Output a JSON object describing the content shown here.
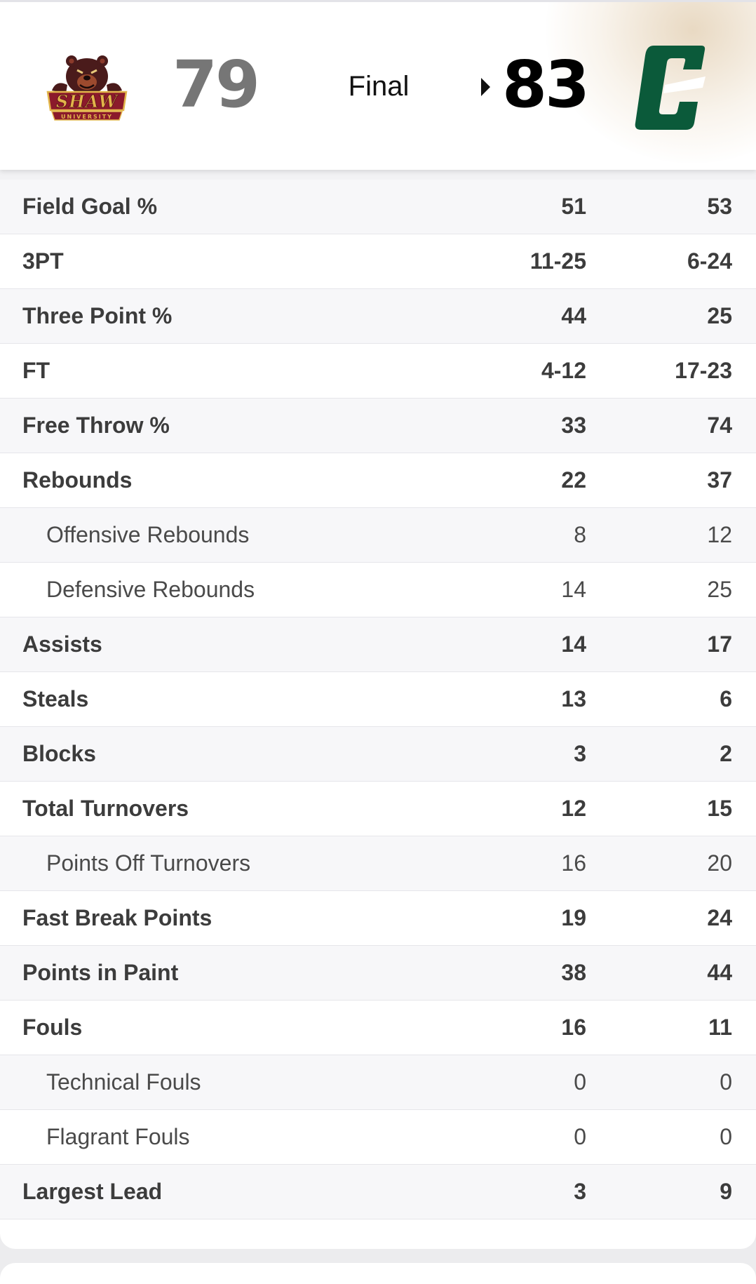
{
  "scoreboard": {
    "away": {
      "logo_icon": "shaw-university-bear-logo",
      "score": "79",
      "color": "#8b1a2b"
    },
    "home": {
      "logo_icon": "charlotte-c-logo",
      "score": "83",
      "color": "#0b5a3a"
    },
    "status": "Final",
    "winner_indicator_icon": "triangle-right-icon"
  },
  "stats": [
    {
      "label": "Field Goal %",
      "away": "51",
      "home": "53",
      "sub": false
    },
    {
      "label": "3PT",
      "away": "11-25",
      "home": "6-24",
      "sub": false
    },
    {
      "label": "Three Point %",
      "away": "44",
      "home": "25",
      "sub": false
    },
    {
      "label": "FT",
      "away": "4-12",
      "home": "17-23",
      "sub": false
    },
    {
      "label": "Free Throw %",
      "away": "33",
      "home": "74",
      "sub": false
    },
    {
      "label": "Rebounds",
      "away": "22",
      "home": "37",
      "sub": false
    },
    {
      "label": "Offensive Rebounds",
      "away": "8",
      "home": "12",
      "sub": true
    },
    {
      "label": "Defensive Rebounds",
      "away": "14",
      "home": "25",
      "sub": true
    },
    {
      "label": "Assists",
      "away": "14",
      "home": "17",
      "sub": false
    },
    {
      "label": "Steals",
      "away": "13",
      "home": "6",
      "sub": false
    },
    {
      "label": "Blocks",
      "away": "3",
      "home": "2",
      "sub": false
    },
    {
      "label": "Total Turnovers",
      "away": "12",
      "home": "15",
      "sub": false
    },
    {
      "label": "Points Off Turnovers",
      "away": "16",
      "home": "20",
      "sub": true
    },
    {
      "label": "Fast Break Points",
      "away": "19",
      "home": "24",
      "sub": false
    },
    {
      "label": "Points in Paint",
      "away": "38",
      "home": "44",
      "sub": false
    },
    {
      "label": "Fouls",
      "away": "16",
      "home": "11",
      "sub": false
    },
    {
      "label": "Technical Fouls",
      "away": "0",
      "home": "0",
      "sub": true
    },
    {
      "label": "Flagrant Fouls",
      "away": "0",
      "home": "0",
      "sub": true
    },
    {
      "label": "Largest Lead",
      "away": "3",
      "home": "9",
      "sub": false
    }
  ]
}
